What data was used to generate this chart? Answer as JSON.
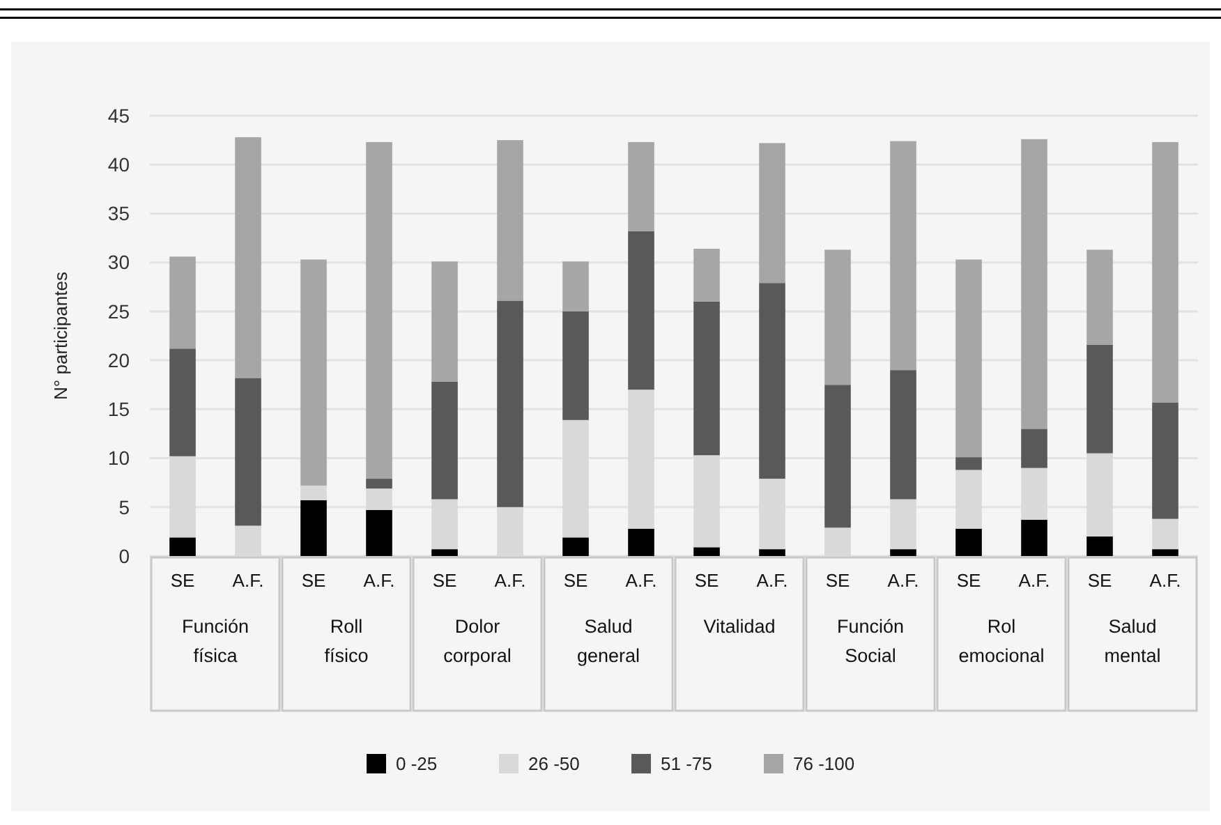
{
  "chart_data": {
    "type": "bar",
    "stacked": true,
    "ylabel": "N° participantes",
    "categories": [
      "SE",
      "A.F.",
      "SE",
      "A.F.",
      "SE",
      "A.F.",
      "SE",
      "A.F.",
      "SE",
      "A.F.",
      "SE",
      "A.F.",
      "SE",
      "A.F.",
      "SE",
      "A.F."
    ],
    "annotations": [
      "Función física",
      "Roll físico",
      "Dolor corporal",
      "Salud general",
      "Vitalidad",
      "Función Social",
      "Rol emocional",
      "Salud mental"
    ],
    "series": [
      {
        "name": "0 -25",
        "color": "#000000",
        "values": [
          1.9,
          0,
          5.7,
          4.7,
          0.7,
          0,
          1.9,
          2.8,
          0.9,
          0.7,
          0,
          0.7,
          2.8,
          3.7,
          2.0,
          0.7
        ]
      },
      {
        "name": "26 -50",
        "color": "#d9d9d9",
        "values": [
          8.3,
          3.1,
          1.5,
          2.2,
          5.1,
          5.0,
          12.0,
          14.2,
          9.4,
          7.2,
          2.9,
          5.1,
          6.0,
          5.3,
          8.5,
          3.1
        ]
      },
      {
        "name": "51 -75",
        "color": "#595959",
        "values": [
          11.0,
          15.1,
          0,
          1.0,
          12.0,
          21.1,
          11.1,
          16.2,
          15.7,
          20.0,
          14.6,
          13.2,
          1.3,
          4.0,
          11.1,
          11.9
        ]
      },
      {
        "name": "76 -100",
        "color": "#a6a6a6",
        "values": [
          9.4,
          24.6,
          23.1,
          34.4,
          12.3,
          16.4,
          5.1,
          9.1,
          5.4,
          14.3,
          13.8,
          23.4,
          20.2,
          29.6,
          9.7,
          26.6
        ]
      }
    ],
    "ylim": [
      0,
      45
    ],
    "yticks": [
      0,
      5,
      10,
      15,
      20,
      25,
      30,
      35,
      40,
      45
    ],
    "grid": "y",
    "legend": "bottom"
  }
}
